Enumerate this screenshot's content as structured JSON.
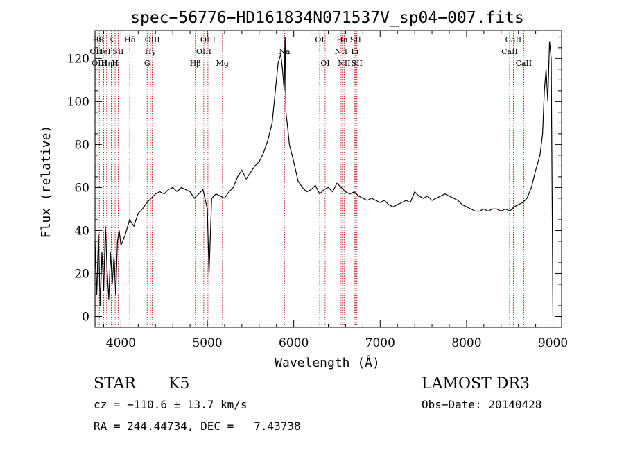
{
  "chart_data": {
    "type": "line",
    "title": "spec−56776−HD161834N071537V_sp04−007.fits",
    "xlabel": "Wavelength (Å)",
    "ylabel": "Flux (relative)",
    "xlim": [
      3700,
      9100
    ],
    "ylim": [
      -5,
      133
    ],
    "x_ticks": [
      4000,
      5000,
      6000,
      7000,
      8000,
      9000
    ],
    "x_tick_labels": [
      "4000",
      "5000",
      "6000",
      "7000",
      "8000",
      "9000"
    ],
    "y_ticks": [
      0,
      20,
      40,
      60,
      80,
      100,
      120
    ],
    "y_tick_labels": [
      "0",
      "20",
      "40",
      "60",
      "80",
      "100",
      "120"
    ],
    "series": [
      {
        "x": [
          3700,
          3720,
          3740,
          3760,
          3780,
          3800,
          3820,
          3840,
          3860,
          3880,
          3900,
          3920,
          3940,
          3960,
          3980,
          4000,
          4050,
          4100,
          4150,
          4200,
          4250,
          4300,
          4350,
          4400,
          4450,
          4500,
          4550,
          4600,
          4650,
          4700,
          4750,
          4800,
          4850,
          4900,
          4950,
          5000,
          5020,
          5050,
          5100,
          5150,
          5200,
          5250,
          5300,
          5350,
          5400,
          5450,
          5500,
          5550,
          5600,
          5650,
          5700,
          5750,
          5800,
          5820,
          5850,
          5870,
          5890,
          5900,
          5910,
          5930,
          5950,
          6000,
          6050,
          6100,
          6150,
          6200,
          6250,
          6300,
          6350,
          6400,
          6450,
          6500,
          6550,
          6600,
          6650,
          6700,
          6750,
          6800,
          6850,
          6900,
          6950,
          7000,
          7050,
          7100,
          7150,
          7200,
          7250,
          7300,
          7350,
          7400,
          7450,
          7500,
          7550,
          7600,
          7650,
          7700,
          7750,
          7800,
          7850,
          7900,
          7950,
          8000,
          8050,
          8100,
          8150,
          8200,
          8250,
          8300,
          8350,
          8400,
          8450,
          8500,
          8550,
          8600,
          8650,
          8700,
          8750,
          8800,
          8850,
          8880,
          8900,
          8920,
          8940,
          8960,
          8980,
          9000
        ],
        "y": [
          35,
          10,
          38,
          5,
          30,
          12,
          42,
          22,
          8,
          30,
          15,
          28,
          10,
          35,
          40,
          33,
          38,
          45,
          42,
          48,
          50,
          53,
          55,
          57,
          58,
          57,
          59,
          60,
          58,
          60,
          59,
          58,
          55,
          57,
          59,
          50,
          20,
          55,
          57,
          56,
          55,
          58,
          60,
          65,
          68,
          64,
          67,
          70,
          72,
          76,
          82,
          90,
          110,
          118,
          122,
          115,
          105,
          130,
          95,
          88,
          80,
          72,
          63,
          60,
          58,
          59,
          61,
          57,
          59,
          60,
          58,
          62,
          60,
          58,
          57,
          58,
          56,
          55,
          54,
          55,
          54,
          53,
          54,
          52,
          51,
          52,
          53,
          54,
          53,
          58,
          56,
          55,
          56,
          54,
          55,
          56,
          57,
          56,
          55,
          54,
          52,
          51,
          50,
          49,
          49,
          50,
          49,
          50,
          50,
          49,
          50,
          49,
          51,
          52,
          53,
          55,
          60,
          68,
          75,
          85,
          105,
          115,
          100,
          128,
          120,
          0
        ]
      }
    ],
    "line_labels": [
      {
        "x": 3710,
        "label": "OII",
        "row": 2
      },
      {
        "x": 3735,
        "label": "Hθ",
        "row": 1
      },
      {
        "x": 3750,
        "label": "OIII",
        "row": 3
      },
      {
        "x": 3800,
        "label": "HeI",
        "row": 2
      },
      {
        "x": 3835,
        "label": "Hη",
        "row": 3
      },
      {
        "x": 3889,
        "label": "K",
        "row": 1
      },
      {
        "x": 3933,
        "label": "H",
        "row": 3
      },
      {
        "x": 3968,
        "label": "SII",
        "row": 2
      },
      {
        "x": 4102,
        "label": "Hδ",
        "row": 1
      },
      {
        "x": 4304,
        "label": "G",
        "row": 3
      },
      {
        "x": 4341,
        "label": "Hγ",
        "row": 2
      },
      {
        "x": 4363,
        "label": "OIII",
        "row": 1
      },
      {
        "x": 4861,
        "label": "Hβ",
        "row": 3
      },
      {
        "x": 4959,
        "label": "OIII",
        "row": 2
      },
      {
        "x": 5007,
        "label": "OIII",
        "row": 1
      },
      {
        "x": 5175,
        "label": "Mg",
        "row": 3
      },
      {
        "x": 5893,
        "label": "Na",
        "row": 2
      },
      {
        "x": 6300,
        "label": "OI",
        "row": 1
      },
      {
        "x": 6363,
        "label": "OI",
        "row": 3
      },
      {
        "x": 6548,
        "label": "NII",
        "row": 2
      },
      {
        "x": 6563,
        "label": "Hα",
        "row": 1
      },
      {
        "x": 6583,
        "label": "NII",
        "row": 3
      },
      {
        "x": 6707,
        "label": "Li",
        "row": 2
      },
      {
        "x": 6716,
        "label": "SII",
        "row": 1
      },
      {
        "x": 6731,
        "label": "SII",
        "row": 3
      },
      {
        "x": 8498,
        "label": "CaII",
        "row": 2
      },
      {
        "x": 8542,
        "label": "CaII",
        "row": 1
      },
      {
        "x": 8662,
        "label": "CaII",
        "row": 3
      }
    ]
  },
  "info": {
    "object_class": "STAR",
    "subclass": "K5",
    "survey": "LAMOST DR3",
    "cz_line": "cz = −110.6 ± 13.7 km/s",
    "obs_date": "Obs−Date: 20140428",
    "coords": "RA = 244.44734, DEC =   7.43738"
  },
  "colors": {
    "line": "#000000",
    "marker_lines": "#c00000",
    "background": "#ffffff"
  }
}
